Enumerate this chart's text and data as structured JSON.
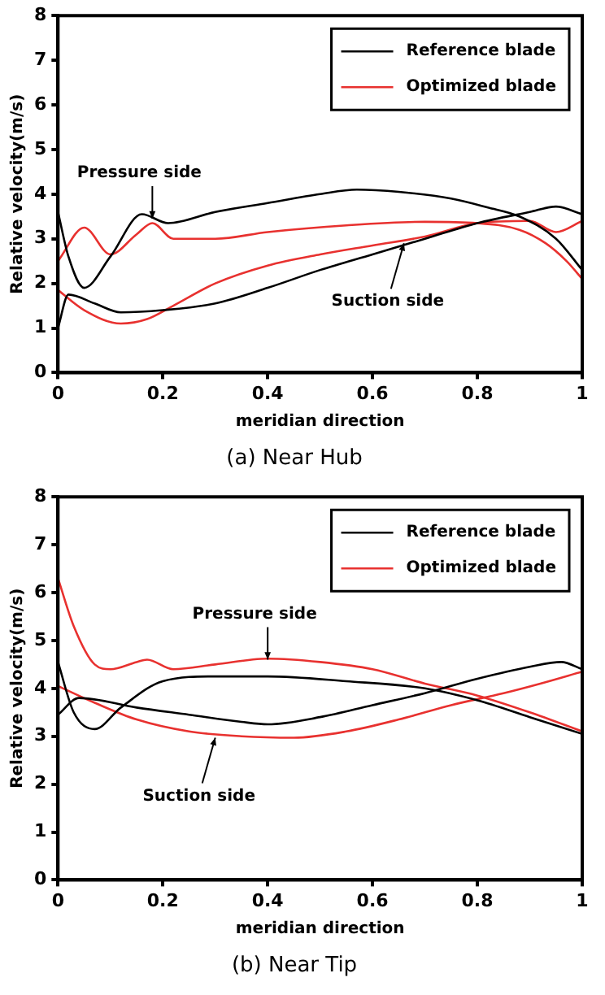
{
  "chart_data": [
    {
      "type": "line",
      "title": "(a) Near Hub",
      "xlabel": "meridian direction",
      "ylabel": "Relative velocity(m/s)",
      "xlim": [
        0,
        1
      ],
      "ylim": [
        0,
        8
      ],
      "xticks": [
        0,
        0.2,
        0.4,
        0.6,
        0.8,
        1
      ],
      "yticks": [
        0,
        1,
        2,
        3,
        4,
        5,
        6,
        7,
        8
      ],
      "legend": "top right",
      "grid": false,
      "marker": "none",
      "line_style": "solid",
      "annotations": [
        {
          "text": "Pressure side",
          "x": 0.18,
          "y": 3.45
        },
        {
          "text": "Suction side",
          "x": 0.66,
          "y": 2.9
        }
      ],
      "series": [
        {
          "name": "Reference blade",
          "color": "#000000",
          "x": [
            0,
            0.02,
            0.05,
            0.1,
            0.16,
            0.21,
            0.3,
            0.4,
            0.5,
            0.57,
            0.65,
            0.75,
            0.82,
            0.88,
            0.95,
            1
          ],
          "values": [
            3.6,
            2.6,
            1.9,
            2.6,
            3.55,
            3.35,
            3.6,
            3.8,
            4.0,
            4.1,
            4.05,
            3.9,
            3.7,
            3.5,
            3.0,
            2.3
          ]
        },
        {
          "color": "#000000",
          "x": [
            0,
            0.02,
            0.07,
            0.12,
            0.2,
            0.3,
            0.4,
            0.5,
            0.6,
            0.7,
            0.8,
            0.9,
            0.95,
            1
          ],
          "values": [
            1.0,
            1.75,
            1.55,
            1.35,
            1.4,
            1.55,
            1.9,
            2.3,
            2.65,
            3.0,
            3.35,
            3.6,
            3.72,
            3.55
          ]
        },
        {
          "name": "Optimized blade",
          "color": "#e8312f",
          "x": [
            0,
            0.05,
            0.1,
            0.15,
            0.18,
            0.22,
            0.3,
            0.4,
            0.55,
            0.7,
            0.8,
            0.88,
            0.93,
            0.97,
            1
          ],
          "values": [
            2.5,
            3.25,
            2.65,
            3.1,
            3.35,
            3.0,
            3.0,
            3.15,
            3.3,
            3.38,
            3.35,
            3.2,
            2.9,
            2.5,
            2.1
          ]
        },
        {
          "color": "#e8312f",
          "x": [
            0,
            0.05,
            0.12,
            0.17,
            0.22,
            0.3,
            0.4,
            0.5,
            0.6,
            0.7,
            0.8,
            0.9,
            0.95,
            1
          ],
          "values": [
            1.85,
            1.4,
            1.1,
            1.2,
            1.5,
            2.0,
            2.4,
            2.65,
            2.85,
            3.05,
            3.35,
            3.4,
            3.15,
            3.4
          ]
        }
      ]
    },
    {
      "type": "line",
      "title": "(b) Near Tip",
      "xlabel": "meridian direction",
      "ylabel": "Relative velocity(m/s)",
      "xlim": [
        0,
        1
      ],
      "ylim": [
        0,
        8
      ],
      "xticks": [
        0,
        0.2,
        0.4,
        0.6,
        0.8,
        1
      ],
      "yticks": [
        0,
        1,
        2,
        3,
        4,
        5,
        6,
        7,
        8
      ],
      "legend": "top right",
      "grid": false,
      "marker": "none",
      "line_style": "solid",
      "annotations": [
        {
          "text": "Pressure side",
          "x": 0.4,
          "y": 4.6
        },
        {
          "text": "Suction side",
          "x": 0.3,
          "y": 2.97
        }
      ],
      "series": [
        {
          "name": "Reference blade",
          "color": "#000000",
          "x": [
            0,
            0.03,
            0.07,
            0.12,
            0.2,
            0.3,
            0.4,
            0.55,
            0.7,
            0.8,
            0.9,
            1
          ],
          "values": [
            4.55,
            3.5,
            3.15,
            3.6,
            4.15,
            4.25,
            4.25,
            4.15,
            4.0,
            3.75,
            3.4,
            3.05
          ]
        },
        {
          "color": "#000000",
          "x": [
            0,
            0.04,
            0.15,
            0.25,
            0.35,
            0.4,
            0.5,
            0.6,
            0.7,
            0.8,
            0.9,
            0.96,
            1
          ],
          "values": [
            3.45,
            3.8,
            3.6,
            3.45,
            3.3,
            3.25,
            3.4,
            3.65,
            3.9,
            4.2,
            4.45,
            4.55,
            4.4
          ]
        },
        {
          "name": "Optimized blade",
          "color": "#e8312f",
          "x": [
            0,
            0.03,
            0.07,
            0.1,
            0.15,
            0.17,
            0.22,
            0.3,
            0.4,
            0.5,
            0.6,
            0.7,
            0.8,
            0.9,
            1
          ],
          "values": [
            6.3,
            5.3,
            4.5,
            4.4,
            4.55,
            4.6,
            4.4,
            4.5,
            4.62,
            4.55,
            4.4,
            4.1,
            3.85,
            3.5,
            3.1
          ]
        },
        {
          "color": "#e8312f",
          "x": [
            0,
            0.07,
            0.15,
            0.25,
            0.35,
            0.45,
            0.55,
            0.65,
            0.75,
            0.85,
            0.92,
            1
          ],
          "values": [
            4.05,
            3.7,
            3.35,
            3.1,
            3.0,
            2.97,
            3.1,
            3.35,
            3.65,
            3.9,
            4.1,
            4.35
          ]
        }
      ]
    }
  ]
}
